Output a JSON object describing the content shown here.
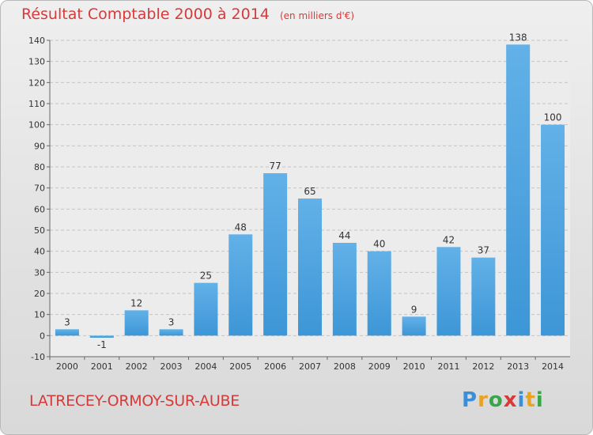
{
  "title": "Résultat Comptable 2000 à 2014",
  "unit": "(en milliers d'€)",
  "commune": "LATRECEY-ORMOY-SUR-AUBE",
  "logo": {
    "letters": [
      "P",
      "r",
      "o",
      "x",
      "i",
      "t",
      "i"
    ],
    "colors": [
      "#3b8fd9",
      "#e8a321",
      "#3aa64a",
      "#d63a3a",
      "#3b8fd9",
      "#e8a321",
      "#3aa64a"
    ]
  },
  "colors": {
    "bar": "#3d96d6",
    "bar_light": "#62b1e8",
    "title": "#d63a3a"
  },
  "chart_data": {
    "type": "bar",
    "categories": [
      "2000",
      "2001",
      "2002",
      "2003",
      "2004",
      "2005",
      "2006",
      "2007",
      "2008",
      "2009",
      "2010",
      "2011",
      "2012",
      "2013",
      "2014"
    ],
    "values": [
      3,
      -1,
      12,
      3,
      25,
      48,
      77,
      65,
      44,
      40,
      9,
      42,
      37,
      138,
      100
    ],
    "labels": [
      "3",
      "-1",
      "12",
      "3",
      "25",
      "48",
      "77",
      "65",
      "44",
      "40",
      "9",
      "42",
      "37",
      "138",
      "100"
    ],
    "ylim": [
      -10,
      140
    ],
    "yticks": [
      -10,
      0,
      10,
      20,
      30,
      40,
      50,
      60,
      70,
      80,
      90,
      100,
      110,
      120,
      130,
      140
    ],
    "grid": true
  }
}
